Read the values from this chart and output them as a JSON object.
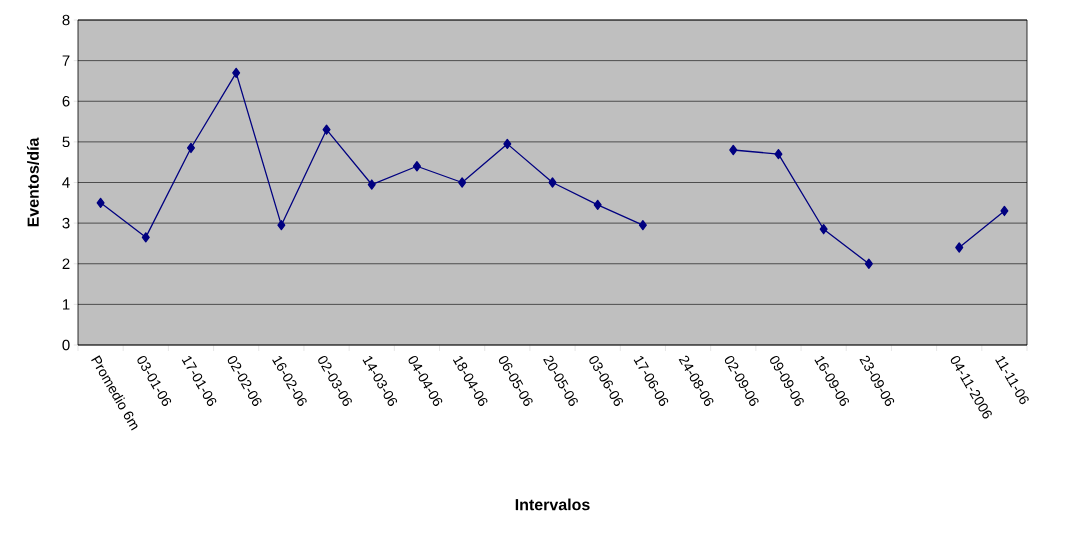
{
  "chart_data": {
    "type": "line",
    "xlabel": "Intervalos",
    "ylabel": "Eventos/día",
    "categories": [
      "Promedio 6m",
      "03-01-06",
      "17-01-06",
      "02-02-06",
      "16-02-06",
      "02-03-06",
      "14-03-06",
      "04-04-06",
      "18-04-06",
      "06-05-06",
      "20-05-06",
      "03-06-06",
      "17-06-06",
      "24-08-06",
      "02-09-06",
      "09-09-06",
      "16-09-06",
      "23-09-06",
      null,
      "04-11-2006",
      "11-11-06"
    ],
    "series": [
      {
        "color": "#000080",
        "values": [
          3.5,
          2.65,
          4.85,
          6.7,
          2.95,
          5.3,
          3.95,
          4.4,
          4.0,
          4.95,
          4.0,
          3.45,
          2.95,
          null,
          4.8,
          4.7,
          2.85,
          2.0,
          null,
          2.4,
          3.3
        ]
      }
    ],
    "ylim": [
      0,
      8
    ],
    "yticks": [
      0,
      1,
      2,
      3,
      4,
      5,
      6,
      7,
      8
    ],
    "grid": "y",
    "marker": "diamond",
    "line_style": "solid"
  }
}
